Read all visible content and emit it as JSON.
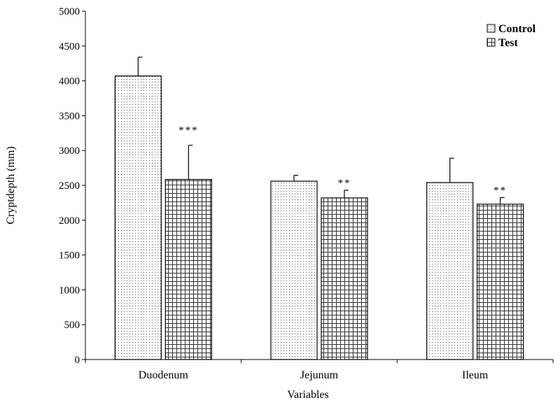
{
  "chart_data": {
    "type": "bar",
    "categories": [
      "Duodenum",
      "Jejunum",
      "Ileum"
    ],
    "series": [
      {
        "name": "Control",
        "pattern": "dots",
        "values": [
          4070,
          2560,
          2540
        ],
        "errors": [
          270,
          85,
          350
        ],
        "annotations": [
          "",
          "",
          ""
        ]
      },
      {
        "name": "Test",
        "pattern": "grid",
        "values": [
          2585,
          2320,
          2230
        ],
        "errors": [
          490,
          110,
          95
        ],
        "annotations": [
          "***",
          "**",
          "**"
        ]
      }
    ],
    "title": "",
    "xlabel": "Variables",
    "ylabel": "Cryptdepth (mm)",
    "ylim": [
      0,
      5000
    ],
    "yticks": [
      0,
      500,
      1000,
      1500,
      2000,
      2500,
      3000,
      3500,
      4000,
      4500,
      5000
    ],
    "grid": false,
    "legend_position": "top-right",
    "colors": {
      "bar_fill": "#ffffff",
      "bar_stroke": "#000000",
      "pattern": "#000000"
    }
  }
}
